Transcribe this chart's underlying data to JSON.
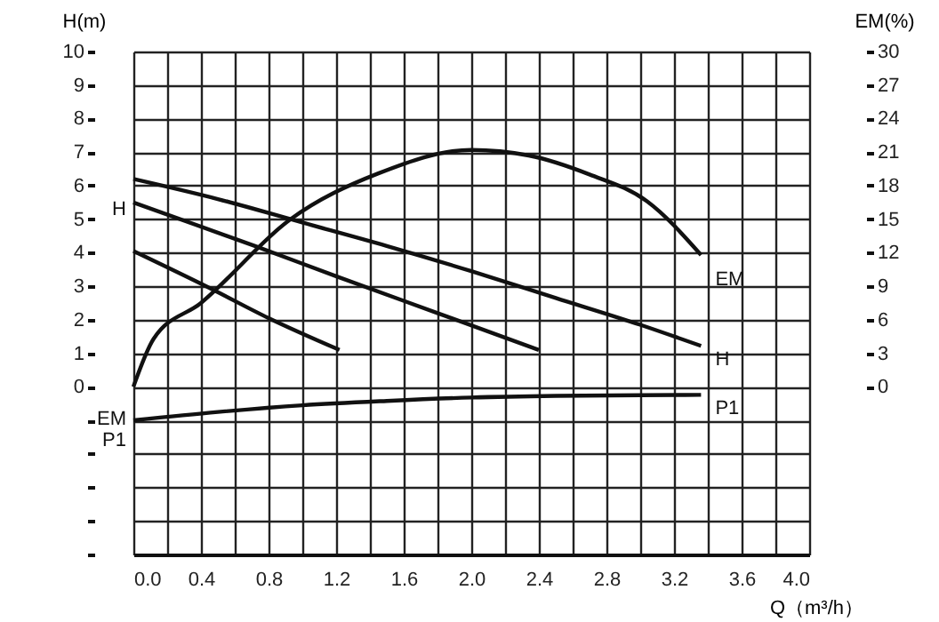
{
  "chart_data": {
    "type": "line",
    "xlabel": "Q（m³/h）",
    "ylabel": "H(m)",
    "y2label": "EM(%)",
    "xlim": [
      0,
      4.0
    ],
    "xticks": [
      {
        "value": 0,
        "label": "0.0"
      },
      {
        "value": 0.2,
        "label": null
      },
      {
        "value": 0.4,
        "label": "0.4"
      },
      {
        "value": 0.6,
        "label": null
      },
      {
        "value": 0.8,
        "label": "0.8"
      },
      {
        "value": 1.0,
        "label": null
      },
      {
        "value": 1.2,
        "label": "1.2"
      },
      {
        "value": 1.4,
        "label": null
      },
      {
        "value": 1.6,
        "label": "1.6"
      },
      {
        "value": 1.8,
        "label": null
      },
      {
        "value": 2.0,
        "label": "2.0"
      },
      {
        "value": 2.2,
        "label": null
      },
      {
        "value": 2.4,
        "label": "2.4"
      },
      {
        "value": 2.6,
        "label": null
      },
      {
        "value": 2.8,
        "label": "2.8"
      },
      {
        "value": 3.0,
        "label": null
      },
      {
        "value": 3.2,
        "label": "3.2"
      },
      {
        "value": 3.4,
        "label": null
      },
      {
        "value": 3.6,
        "label": "3.6"
      },
      {
        "value": 3.8,
        "label": null
      },
      {
        "value": 4.0,
        "label": "4.0"
      }
    ],
    "ylim": [
      -5,
      10
    ],
    "yticks": [
      {
        "value": -5,
        "label": null
      },
      {
        "value": -4,
        "label": null
      },
      {
        "value": -3,
        "label": null
      },
      {
        "value": -2,
        "label": null
      },
      {
        "value": -1,
        "label": null
      },
      0,
      1,
      2,
      3,
      4,
      5,
      6,
      7,
      8,
      9,
      10
    ],
    "y2lim": [
      -15,
      30
    ],
    "y2ticks": [
      0,
      3,
      6,
      9,
      12,
      15,
      18,
      21,
      24,
      27,
      30
    ],
    "grid": true,
    "legend": false,
    "marker": "none",
    "line_style": "solid",
    "series": [
      {
        "name": "H",
        "color": "#111111",
        "x": [
          0,
          0.5,
          1.0,
          1.5,
          2.0,
          2.5,
          3.0,
          3.36
        ],
        "values": [
          6.2,
          5.6,
          4.9,
          4.2,
          3.45,
          2.65,
          1.85,
          1.22
        ]
      },
      {
        "color": "#111111",
        "x": [
          0,
          0.72,
          1.2,
          1.8,
          2.4
        ],
        "values": [
          5.5,
          4.2,
          3.3,
          2.2,
          1.1
        ]
      },
      {
        "color": "#111111",
        "x": [
          0,
          0.45,
          0.8,
          1.22
        ],
        "values": [
          4.05,
          2.95,
          2.05,
          1.1
        ]
      },
      {
        "name": "EM",
        "color": "#111111",
        "axis": "y2",
        "x": [
          0,
          0.12,
          0.4,
          0.93,
          1.45,
          2.0,
          2.34,
          2.7,
          3.04,
          3.36
        ],
        "values": [
          0,
          4.3,
          7.5,
          15,
          19.1,
          21.2,
          20.7,
          19.0,
          16.6,
          11.8
        ]
      },
      {
        "name": "P1",
        "color": "#111111",
        "x": [
          0,
          0.5,
          1.0,
          1.5,
          2.0,
          2.5,
          3.0,
          3.36
        ],
        "values": [
          -1.0,
          -0.75,
          -0.55,
          -0.42,
          -0.32,
          -0.27,
          -0.25,
          -0.24
        ]
      }
    ],
    "annotations": [
      "H",
      "EM",
      "P1"
    ]
  }
}
